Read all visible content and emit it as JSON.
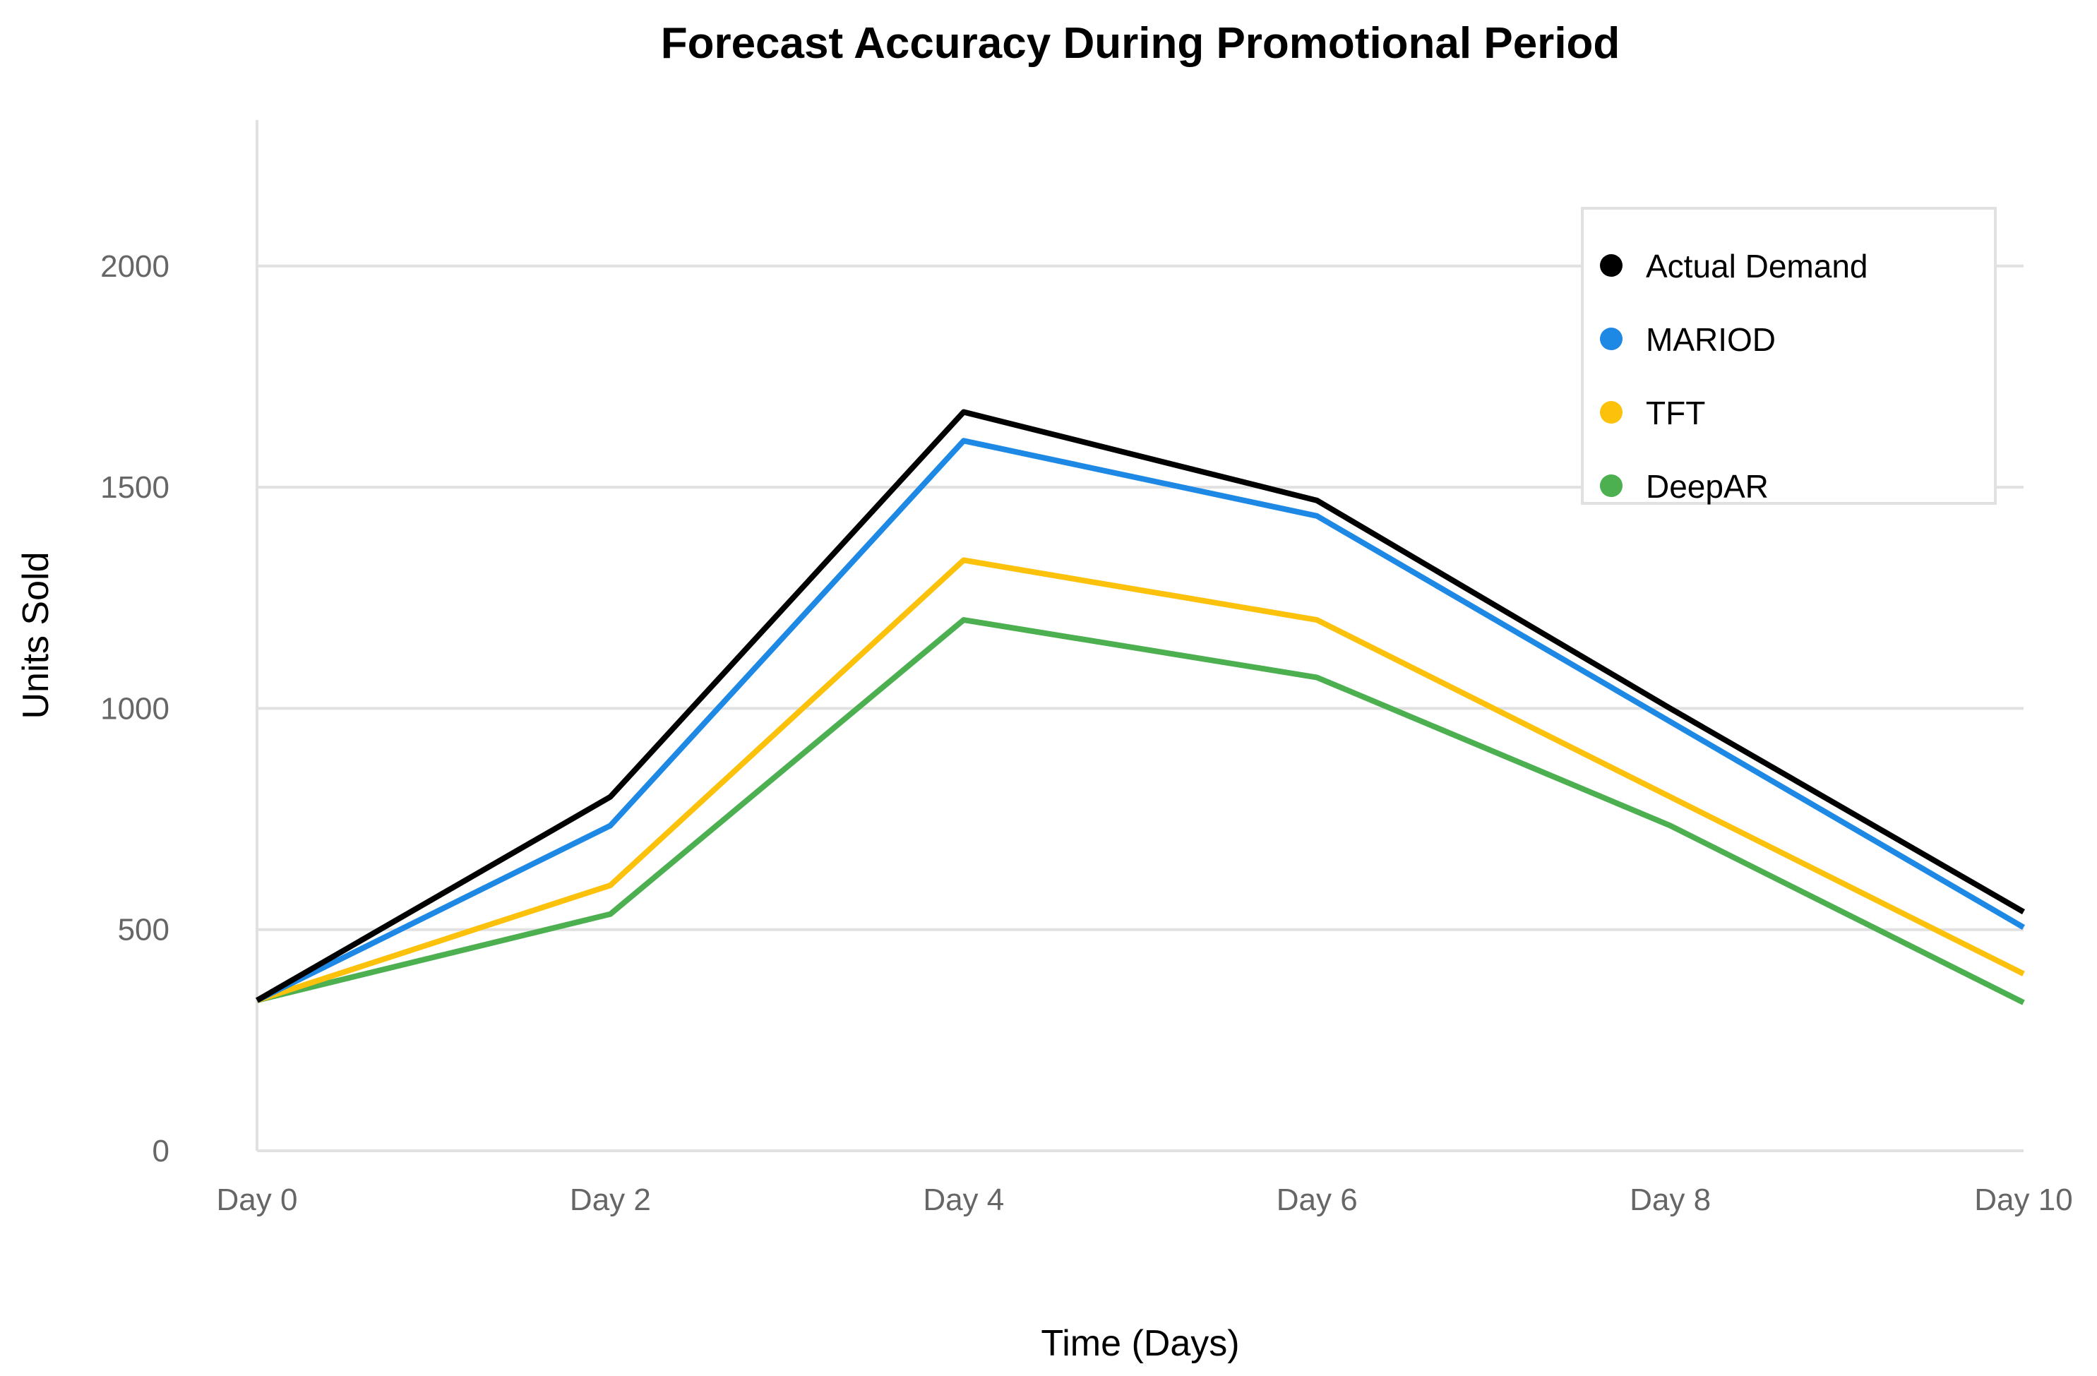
{
  "chart_data": {
    "type": "line",
    "title": "Forecast Accuracy During Promotional Period",
    "xlabel": "Time (Days)",
    "ylabel": "Units Sold",
    "categories": [
      "Day 0",
      "Day 2",
      "Day 4",
      "Day 6",
      "Day 8",
      "Day 10"
    ],
    "ylim": [
      0,
      2330
    ],
    "yticks": [
      0,
      500,
      1000,
      1500,
      2000
    ],
    "grid": true,
    "legend_position": "top-right",
    "series": [
      {
        "name": "Actual Demand",
        "color": "#000000",
        "values": [
          340,
          800,
          1670,
          1470,
          1000,
          540
        ]
      },
      {
        "name": "MARIOD",
        "color": "#1e88e5",
        "values": [
          340,
          735,
          1605,
          1435,
          970,
          505
        ]
      },
      {
        "name": "TFT",
        "color": "#fbc10b",
        "values": [
          340,
          600,
          1335,
          1200,
          800,
          400
        ]
      },
      {
        "name": "DeepAR",
        "color": "#4caf50",
        "values": [
          340,
          535,
          1200,
          1070,
          735,
          335
        ]
      }
    ]
  }
}
